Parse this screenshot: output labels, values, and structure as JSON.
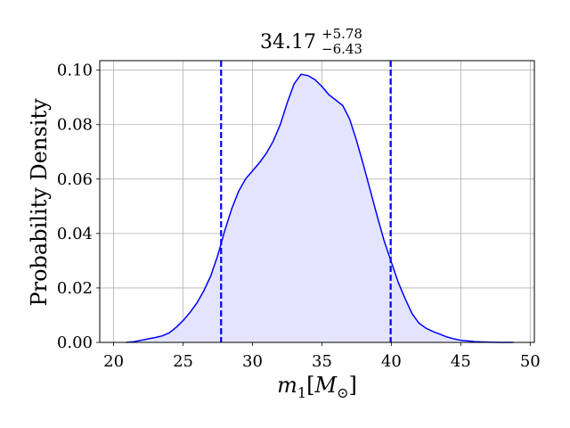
{
  "chart_data": {
    "type": "area",
    "title": {
      "value": "34.17",
      "upper": "+5.78",
      "lower": "−6.43"
    },
    "xlabel": {
      "main": "m",
      "sub1": "1",
      "bracket_open": "[",
      "M": "M",
      "sub_sym": "⊙",
      "bracket_close": "]"
    },
    "ylabel": "Probability Density",
    "xlim": [
      19,
      50.3
    ],
    "ylim": [
      0,
      0.1035
    ],
    "xticks": [
      20,
      25,
      30,
      35,
      40,
      45,
      50
    ],
    "xtick_labels": [
      "20",
      "25",
      "30",
      "35",
      "40",
      "45",
      "50"
    ],
    "yticks": [
      0,
      0.02,
      0.04,
      0.06,
      0.08,
      0.1
    ],
    "ytick_labels": [
      "0.00",
      "0.02",
      "0.04",
      "0.06",
      "0.08",
      "0.10"
    ],
    "grid": true,
    "line_color": "#0000ff",
    "fill_color": "#e4e4ff",
    "series": [
      {
        "x": [
          20.9,
          21.5,
          22.0,
          22.5,
          23.0,
          23.5,
          24.0,
          24.5,
          25.0,
          25.5,
          26.0,
          26.5,
          27.0,
          27.5,
          28.0,
          28.5,
          29.0,
          29.5,
          30.0,
          30.5,
          31.0,
          31.5,
          32.0,
          32.5,
          33.0,
          33.5,
          34.0,
          34.5,
          35.0,
          35.5,
          36.0,
          36.5,
          37.0,
          37.5,
          38.0,
          38.5,
          39.0,
          39.5,
          40.0,
          40.5,
          41.0,
          41.5,
          42.0,
          42.5,
          43.0,
          43.5,
          44.0,
          44.5,
          45.0,
          46.0,
          47.0,
          48.0,
          48.8
        ],
        "y": [
          0.0,
          0.0003,
          0.0008,
          0.0013,
          0.0018,
          0.0024,
          0.0035,
          0.0055,
          0.008,
          0.011,
          0.0145,
          0.019,
          0.0245,
          0.032,
          0.041,
          0.049,
          0.0555,
          0.06,
          0.063,
          0.066,
          0.0695,
          0.074,
          0.08,
          0.088,
          0.095,
          0.0985,
          0.098,
          0.0965,
          0.094,
          0.091,
          0.089,
          0.087,
          0.082,
          0.074,
          0.065,
          0.0555,
          0.046,
          0.037,
          0.0295,
          0.022,
          0.016,
          0.0105,
          0.007,
          0.0052,
          0.004,
          0.003,
          0.002,
          0.0013,
          0.0008,
          0.0003,
          0.0001,
          0.0,
          0.0
        ]
      }
    ],
    "vlines": [
      27.74,
      39.95
    ],
    "vline_color": "#0000ff"
  }
}
